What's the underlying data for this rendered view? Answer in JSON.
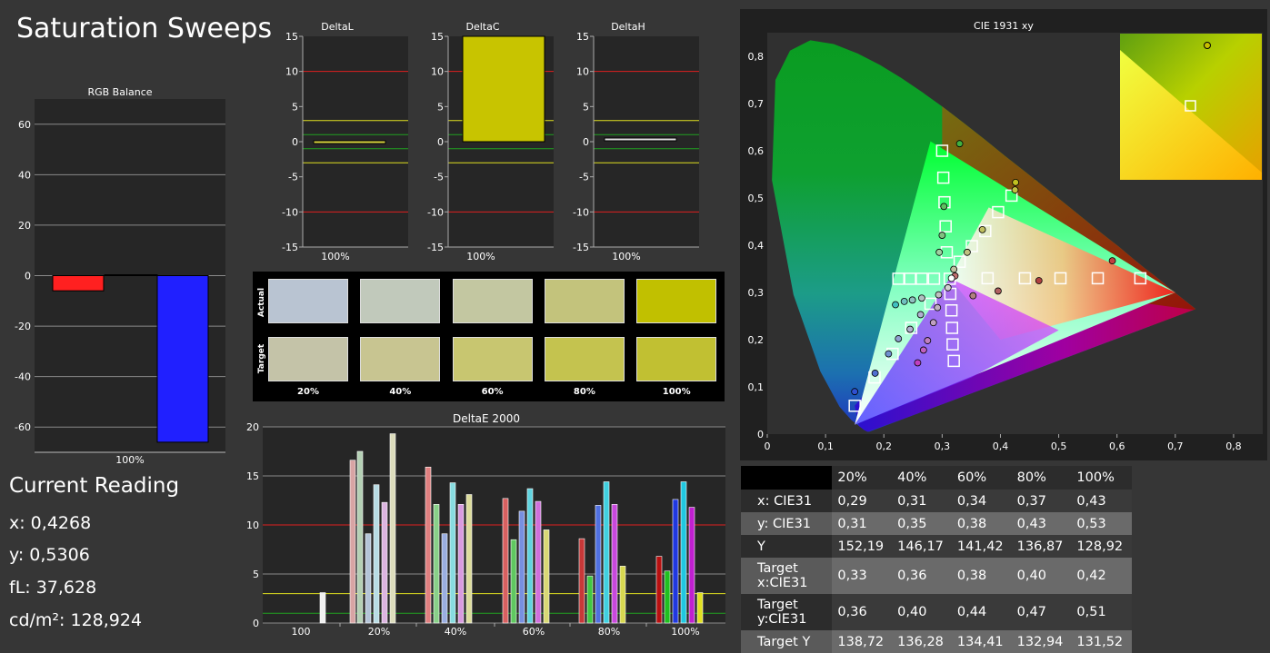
{
  "page": {
    "title": "Saturation Sweeps"
  },
  "rgb_balance": {
    "title": "RGB Balance",
    "yticks": [
      "60",
      "40",
      "20",
      "0",
      "-20",
      "-40",
      "-60"
    ],
    "xlabel": "100%"
  },
  "delta_charts": [
    {
      "title": "DeltaL",
      "xlabel": "100%"
    },
    {
      "title": "DeltaC",
      "xlabel": "100%"
    },
    {
      "title": "DeltaH",
      "xlabel": "100%"
    }
  ],
  "delta_yticks": [
    "15",
    "10",
    "5",
    "0",
    "-5",
    "-10",
    "-15"
  ],
  "swatches": {
    "actual_label": "Actual",
    "target_label": "Target",
    "labels": [
      "20%",
      "40%",
      "60%",
      "80%",
      "100%"
    ],
    "actual_colors": [
      "#b9c4d2",
      "#c1c9bb",
      "#c3c7a1",
      "#c3c37c",
      "#c1c000"
    ],
    "target_colors": [
      "#c4c3a8",
      "#c8c591",
      "#c8c670",
      "#c4c34f",
      "#c1c032"
    ]
  },
  "current_reading": {
    "title": "Current Reading",
    "x": "x: 0,4268",
    "y": "y: 0,5306",
    "fl": "fL: 37,628",
    "cdm2": "cd/m²: 128,924"
  },
  "deltae_xlabels": [
    "100",
    "20%",
    "40%",
    "60%",
    "80%",
    "100%"
  ],
  "deltae_yticks": [
    "20",
    "15",
    "10",
    "5",
    "0"
  ],
  "cie": {
    "title": "CIE 1931 xy",
    "xticks": [
      "0",
      "0,1",
      "0,2",
      "0,3",
      "0,4",
      "0,5",
      "0,6",
      "0,7",
      "0,8"
    ],
    "yticks": [
      "0,8",
      "0,7",
      "0,6",
      "0,5",
      "0,4",
      "0,3",
      "0,2",
      "0,1",
      "0"
    ]
  },
  "table": {
    "headers": [
      "",
      "20%",
      "40%",
      "60%",
      "80%",
      "100%"
    ],
    "rows": [
      [
        "x: CIE31",
        "0,29",
        "0,31",
        "0,34",
        "0,37",
        "0,43"
      ],
      [
        "y: CIE31",
        "0,31",
        "0,35",
        "0,38",
        "0,43",
        "0,53"
      ],
      [
        "Y",
        "152,19",
        "146,17",
        "141,42",
        "136,87",
        "128,92"
      ],
      [
        "Target x:CIE31",
        "0,33",
        "0,36",
        "0,38",
        "0,40",
        "0,42"
      ],
      [
        "Target y:CIE31",
        "0,36",
        "0,40",
        "0,44",
        "0,47",
        "0,51"
      ],
      [
        "Target Y",
        "138,72",
        "136,28",
        "134,41",
        "132,94",
        "131,52"
      ]
    ]
  },
  "chart_data": [
    {
      "type": "bar",
      "title": "RGB Balance",
      "categories": [
        "100%"
      ],
      "series": [
        {
          "color": "#ff2020",
          "values": [
            -6
          ]
        },
        {
          "color": "#20ff20",
          "values": [
            0
          ]
        },
        {
          "color": "#2020ff",
          "values": [
            -66
          ]
        }
      ],
      "ylim": [
        -70,
        70
      ]
    },
    {
      "type": "bar",
      "title": "DeltaL",
      "categories": [
        "100%"
      ],
      "values": [
        -0.2
      ],
      "ylim": [
        -15,
        15
      ]
    },
    {
      "type": "bar",
      "title": "DeltaC",
      "categories": [
        "100%"
      ],
      "values": [
        15
      ],
      "ylim": [
        -15,
        15
      ]
    },
    {
      "type": "bar",
      "title": "DeltaH",
      "categories": [
        "100%"
      ],
      "values": [
        0.3
      ],
      "ylim": [
        -15,
        15
      ]
    },
    {
      "type": "bar",
      "title": "DeltaE 2000",
      "categories": [
        "100",
        "20%",
        "40%",
        "60%",
        "80%",
        "100%"
      ],
      "groups": [
        {
          "category": "100",
          "bars": [
            [
              3.1,
              "#f0f0f0"
            ]
          ]
        },
        {
          "category": "20%",
          "bars": [
            [
              16.6,
              "#d8a4a4"
            ],
            [
              17.5,
              "#b4d0b4"
            ],
            [
              9.1,
              "#b4c4d8"
            ],
            [
              14.1,
              "#b8dce4"
            ],
            [
              12.3,
              "#dcb4e0"
            ],
            [
              19.3,
              "#dcdcbc"
            ]
          ]
        },
        {
          "category": "40%",
          "bars": [
            [
              15.9,
              "#e08080"
            ],
            [
              12.1,
              "#88d088"
            ],
            [
              9.1,
              "#9aaee0"
            ],
            [
              14.3,
              "#88dce0"
            ],
            [
              12.1,
              "#d89ae0"
            ],
            [
              13.1,
              "#dcdc9c"
            ]
          ]
        },
        {
          "category": "60%",
          "bars": [
            [
              12.7,
              "#d86060"
            ],
            [
              8.5,
              "#60c860"
            ],
            [
              11.4,
              "#7890e0"
            ],
            [
              13.7,
              "#60d4e0"
            ],
            [
              12.4,
              "#d070dc"
            ],
            [
              9.5,
              "#d8d874"
            ]
          ]
        },
        {
          "category": "80%",
          "bars": [
            [
              8.6,
              "#c83838"
            ],
            [
              4.8,
              "#40c840"
            ],
            [
              12.0,
              "#5070e0"
            ],
            [
              14.4,
              "#40d0e0"
            ],
            [
              12.1,
              "#c848dc"
            ],
            [
              5.8,
              "#d8d850"
            ]
          ]
        },
        {
          "category": "100%",
          "bars": [
            [
              6.8,
              "#b81010"
            ],
            [
              5.3,
              "#20c020"
            ],
            [
              12.6,
              "#2038e0"
            ],
            [
              14.4,
              "#20c8e0"
            ],
            [
              11.8,
              "#c020d0"
            ],
            [
              3.1,
              "#e0e020"
            ]
          ]
        }
      ],
      "ylim": [
        0,
        20
      ]
    },
    {
      "type": "scatter",
      "title": "CIE 1931 xy",
      "series": [
        {
          "name": "target",
          "points": [
            [
              0.64,
              0.33
            ],
            [
              0.567,
              0.33
            ],
            [
              0.503,
              0.33
            ],
            [
              0.442,
              0.33
            ],
            [
              0.378,
              0.33
            ],
            [
              0.3,
              0.6
            ],
            [
              0.302,
              0.543
            ],
            [
              0.304,
              0.491
            ],
            [
              0.306,
              0.44
            ],
            [
              0.308,
              0.385
            ],
            [
              0.15,
              0.06
            ],
            [
              0.184,
              0.12
            ],
            [
              0.215,
              0.17
            ],
            [
              0.247,
              0.225
            ],
            [
              0.28,
              0.276
            ],
            [
              0.419,
              0.505
            ],
            [
              0.396,
              0.47
            ],
            [
              0.374,
              0.43
            ],
            [
              0.351,
              0.398
            ],
            [
              0.33,
              0.365
            ],
            [
              0.225,
              0.329
            ],
            [
              0.245,
              0.329
            ],
            [
              0.265,
              0.329
            ],
            [
              0.286,
              0.329
            ],
            [
              0.32,
              0.155
            ],
            [
              0.318,
              0.19
            ],
            [
              0.317,
              0.225
            ],
            [
              0.316,
              0.262
            ],
            [
              0.314,
              0.297
            ],
            [
              0.313,
              0.329
            ]
          ]
        },
        {
          "name": "actual",
          "points": [
            [
              0.592,
              0.367
            ],
            [
              0.466,
              0.325
            ],
            [
              0.396,
              0.303
            ],
            [
              0.353,
              0.293
            ],
            [
              0.322,
              0.335
            ],
            [
              0.33,
              0.615
            ],
            [
              0.303,
              0.482
            ],
            [
              0.3,
              0.421
            ],
            [
              0.295,
              0.385
            ],
            [
              0.15,
              0.09
            ],
            [
              0.185,
              0.129
            ],
            [
              0.208,
              0.17
            ],
            [
              0.225,
              0.202
            ],
            [
              0.245,
              0.222
            ],
            [
              0.263,
              0.253
            ],
            [
              0.426,
              0.533
            ],
            [
              0.425,
              0.517
            ],
            [
              0.369,
              0.433
            ],
            [
              0.343,
              0.385
            ],
            [
              0.32,
              0.349
            ],
            [
              0.22,
              0.274
            ],
            [
              0.235,
              0.281
            ],
            [
              0.249,
              0.284
            ],
            [
              0.265,
              0.288
            ],
            [
              0.294,
              0.295
            ],
            [
              0.258,
              0.151
            ],
            [
              0.268,
              0.178
            ],
            [
              0.275,
              0.198
            ],
            [
              0.285,
              0.236
            ],
            [
              0.292,
              0.268
            ],
            [
              0.31,
              0.31
            ],
            [
              0.316,
              0.33
            ]
          ]
        }
      ],
      "inset": {
        "point": [
          0.426,
          0.533
        ],
        "target": [
          0.419,
          0.505
        ]
      },
      "xlim": [
        0,
        0.85
      ],
      "ylim": [
        0,
        0.85
      ]
    }
  ]
}
